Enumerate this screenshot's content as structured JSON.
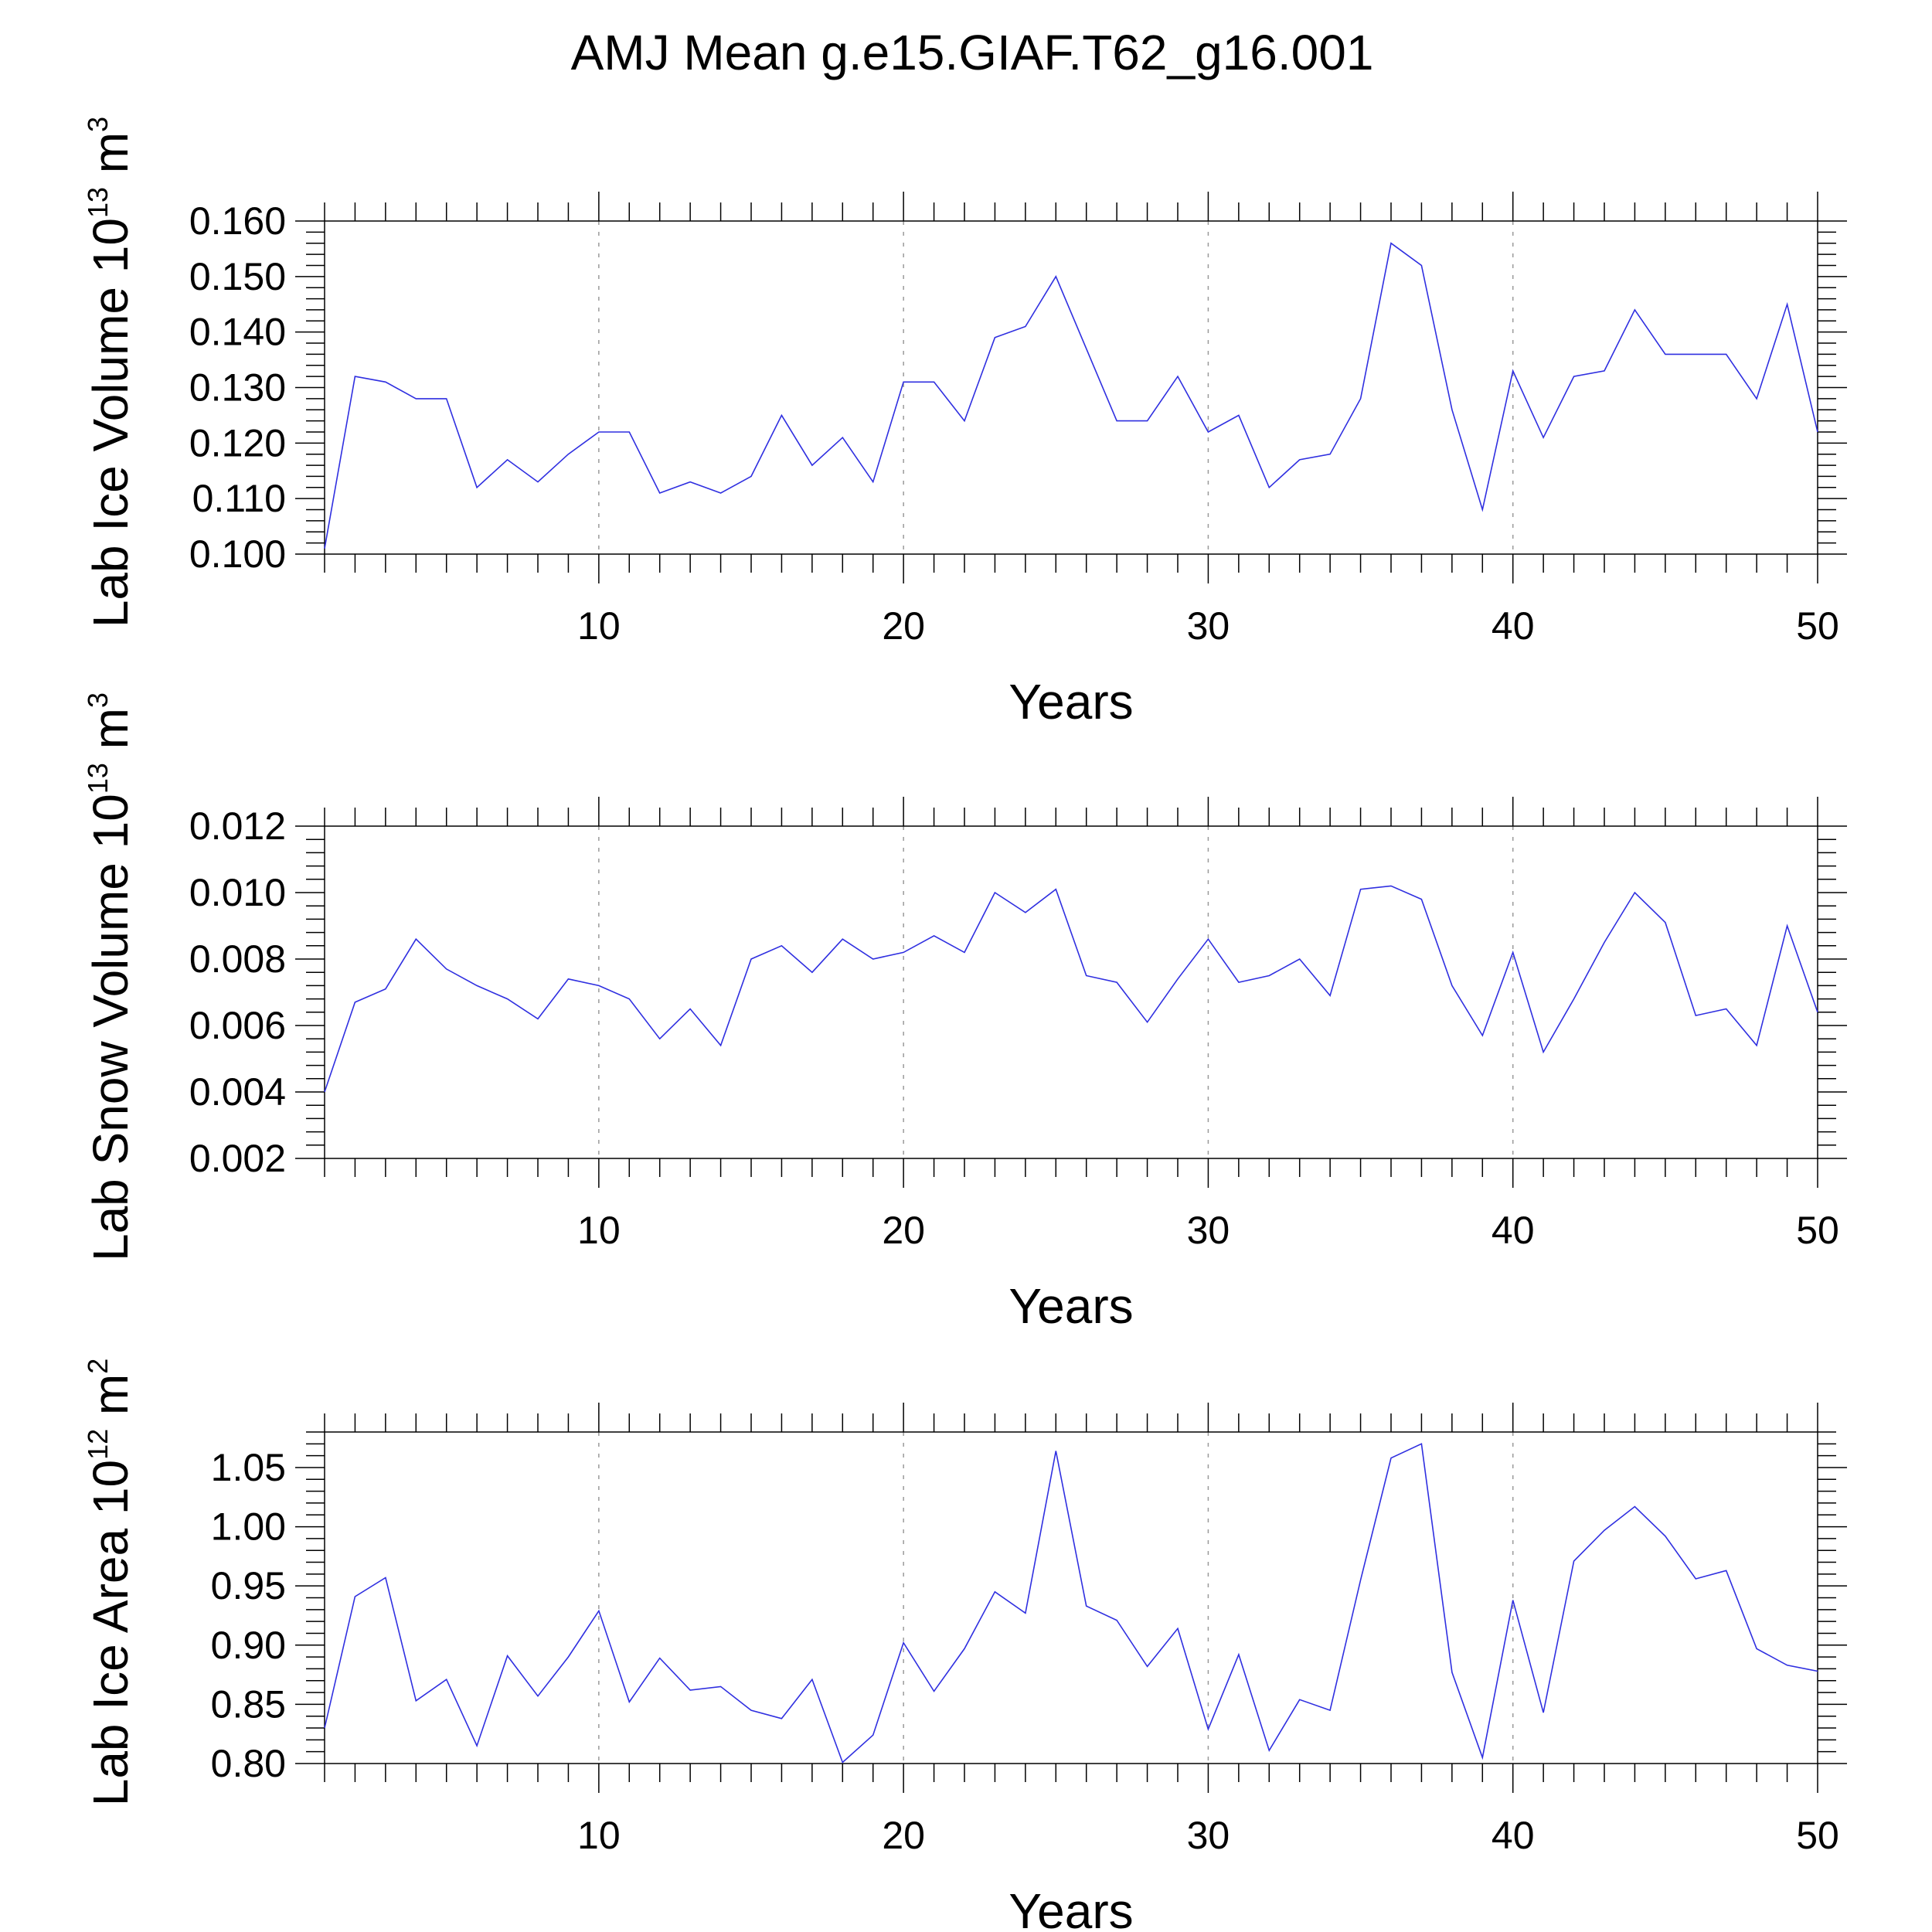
{
  "title": "AMJ Mean g.e15.GIAF.T62_g16.001",
  "colors": {
    "series": "#2f2fe0",
    "grid": "#9a9a9a",
    "axis": "#000000"
  },
  "chart_data": [
    {
      "type": "line",
      "title": "",
      "xlabel": "Years",
      "ylabel": {
        "base": "Lab Ice Volume 10",
        "exp": "13",
        "unit": " m",
        "unit_exp": "3"
      },
      "xlim": [
        1,
        50
      ],
      "ylim": [
        0.1,
        0.16
      ],
      "xticks": [
        10,
        20,
        30,
        40,
        50
      ],
      "yticks": [
        "0.100",
        "0.110",
        "0.120",
        "0.130",
        "0.140",
        "0.150",
        "0.160"
      ],
      "grid": "x-dashed",
      "x": [
        1,
        2,
        3,
        4,
        5,
        6,
        7,
        8,
        9,
        10,
        11,
        12,
        13,
        14,
        15,
        16,
        17,
        18,
        19,
        20,
        21,
        22,
        23,
        24,
        25,
        26,
        27,
        28,
        29,
        30,
        31,
        32,
        33,
        34,
        35,
        36,
        37,
        38,
        39,
        40,
        41,
        42,
        43,
        44,
        45,
        46,
        47,
        48,
        49,
        50
      ],
      "series": [
        {
          "values": [
            0.101,
            0.132,
            0.131,
            0.128,
            0.128,
            0.112,
            0.117,
            0.113,
            0.118,
            0.122,
            0.122,
            0.111,
            0.113,
            0.111,
            0.114,
            0.125,
            0.116,
            0.121,
            0.113,
            0.131,
            0.131,
            0.124,
            0.139,
            0.141,
            0.15,
            0.137,
            0.124,
            0.124,
            0.132,
            0.122,
            0.125,
            0.112,
            0.117,
            0.118,
            0.128,
            0.156,
            0.152,
            0.126,
            0.108,
            0.133,
            0.121,
            0.132,
            0.133,
            0.144,
            0.136,
            0.136,
            0.136,
            0.128,
            0.145,
            0.122
          ]
        }
      ]
    },
    {
      "type": "line",
      "title": "",
      "xlabel": "Years",
      "ylabel": {
        "base": "Lab Snow Volume 10",
        "exp": "13",
        "unit": " m",
        "unit_exp": "3"
      },
      "xlim": [
        1,
        50
      ],
      "ylim": [
        0.002,
        0.012
      ],
      "xticks": [
        10,
        20,
        30,
        40,
        50
      ],
      "yticks": [
        "0.002",
        "0.004",
        "0.006",
        "0.008",
        "0.010",
        "0.012"
      ],
      "grid": "x-dashed",
      "x": [
        1,
        2,
        3,
        4,
        5,
        6,
        7,
        8,
        9,
        10,
        11,
        12,
        13,
        14,
        15,
        16,
        17,
        18,
        19,
        20,
        21,
        22,
        23,
        24,
        25,
        26,
        27,
        28,
        29,
        30,
        31,
        32,
        33,
        34,
        35,
        36,
        37,
        38,
        39,
        40,
        41,
        42,
        43,
        44,
        45,
        46,
        47,
        48,
        49,
        50
      ],
      "series": [
        {
          "values": [
            0.004,
            0.0067,
            0.0071,
            0.0086,
            0.0077,
            0.0072,
            0.0068,
            0.0062,
            0.0074,
            0.0072,
            0.0068,
            0.0056,
            0.0065,
            0.0054,
            0.008,
            0.0084,
            0.0076,
            0.0086,
            0.008,
            0.0082,
            0.0087,
            0.0082,
            0.01,
            0.0094,
            0.0101,
            0.0075,
            0.0073,
            0.0061,
            0.0074,
            0.0086,
            0.0073,
            0.0075,
            0.008,
            0.0069,
            0.0101,
            0.0102,
            0.0098,
            0.0072,
            0.0057,
            0.0082,
            0.0052,
            0.0068,
            0.0085,
            0.01,
            0.0091,
            0.0063,
            0.0065,
            0.0054,
            0.009,
            0.0064
          ]
        }
      ]
    },
    {
      "type": "line",
      "title": "",
      "xlabel": "Years",
      "ylabel": {
        "base": "Lab Ice Area 10",
        "exp": "12",
        "unit": " m",
        "unit_exp": "2"
      },
      "xlim": [
        1,
        50
      ],
      "ylim": [
        0.8,
        1.08
      ],
      "xticks": [
        10,
        20,
        30,
        40,
        50
      ],
      "yticks": [
        "0.80",
        "0.85",
        "0.90",
        "0.95",
        "1.00",
        "1.05"
      ],
      "grid": "x-dashed",
      "x": [
        1,
        2,
        3,
        4,
        5,
        6,
        7,
        8,
        9,
        10,
        11,
        12,
        13,
        14,
        15,
        16,
        17,
        18,
        19,
        20,
        21,
        22,
        23,
        24,
        25,
        26,
        27,
        28,
        29,
        30,
        31,
        32,
        33,
        34,
        35,
        36,
        37,
        38,
        39,
        40,
        41,
        42,
        43,
        44,
        45,
        46,
        47,
        48,
        49,
        50
      ],
      "series": [
        {
          "values": [
            0.83,
            0.941,
            0.957,
            0.853,
            0.871,
            0.815,
            0.891,
            0.857,
            0.89,
            0.929,
            0.852,
            0.889,
            0.862,
            0.865,
            0.845,
            0.838,
            0.871,
            0.801,
            0.824,
            0.902,
            0.861,
            0.897,
            0.945,
            0.927,
            1.064,
            0.933,
            0.921,
            0.882,
            0.914,
            0.829,
            0.892,
            0.811,
            0.854,
            0.845,
            0.955,
            1.058,
            1.07,
            0.877,
            0.805,
            0.938,
            0.843,
            0.971,
            0.997,
            1.017,
            0.992,
            0.956,
            0.963,
            0.897,
            0.883,
            0.878
          ]
        }
      ]
    }
  ]
}
